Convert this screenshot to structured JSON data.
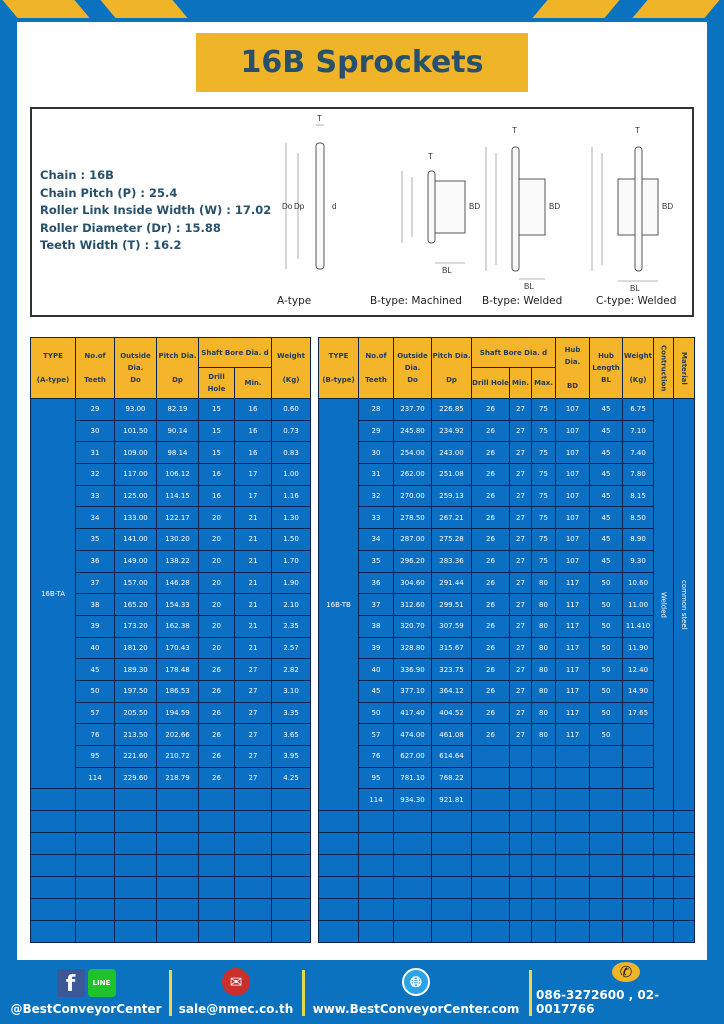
{
  "title": "16B Sprockets",
  "colors": {
    "brand_blue": "#0b72bf",
    "accent_yellow": "#f0b429",
    "title_text": "#27506b",
    "table_cell": "#0b6fc4"
  },
  "specs": [
    {
      "label": "Chain",
      "value": "16B"
    },
    {
      "label": "Chain Pitch (P)",
      "value": "25.4"
    },
    {
      "label": "Roller Link Inside Width (W)",
      "value": "17.02"
    },
    {
      "label": "Roller Diameter (Dr)",
      "value": "15.88"
    },
    {
      "label": "Teeth Width (T)",
      "value": "16.2"
    }
  ],
  "diagrams": {
    "labels": {
      "t": "T",
      "do": "Do",
      "dp": "Dp",
      "d": "d",
      "bd": "BD",
      "bl": "BL"
    },
    "captions": [
      "A-type",
      "B-type: Machined",
      "B-type: Welded",
      "C-type: Welded"
    ]
  },
  "table_a": {
    "headers": {
      "type": "TYPE",
      "type_sub": "(A-type)",
      "teeth": "No.of",
      "teeth_sub": "Teeth",
      "do": "Outside",
      "do_sub": "Dia.",
      "do_sub2": "Do",
      "dp": "Pitch Dia.",
      "dp_sub": "Dp",
      "bore": "Shaft Bore Dia. d",
      "drill": "Drill Hole",
      "min": "Min.",
      "weight": "Weight",
      "weight_sub": "(Kg)"
    },
    "type_value": "16B-TA",
    "rows": [
      [
        "29",
        "93.00",
        "82.19",
        "15",
        "16",
        "0.60"
      ],
      [
        "30",
        "101.50",
        "90.14",
        "15",
        "16",
        "0.73"
      ],
      [
        "31",
        "109.00",
        "98.14",
        "15",
        "16",
        "0.83"
      ],
      [
        "32",
        "117.00",
        "106.12",
        "16",
        "17",
        "1.00"
      ],
      [
        "33",
        "125.00",
        "114.15",
        "16",
        "17",
        "1.16"
      ],
      [
        "34",
        "133.00",
        "122.17",
        "20",
        "21",
        "1.30"
      ],
      [
        "35",
        "141.00",
        "130.20",
        "20",
        "21",
        "1.50"
      ],
      [
        "36",
        "149.00",
        "138.22",
        "20",
        "21",
        "1.70"
      ],
      [
        "37",
        "157.00",
        "146.28",
        "20",
        "21",
        "1.90"
      ],
      [
        "38",
        "165.20",
        "154.33",
        "20",
        "21",
        "2.10"
      ],
      [
        "39",
        "173.20",
        "162.38",
        "20",
        "21",
        "2.35"
      ],
      [
        "40",
        "181.20",
        "170.43",
        "20",
        "21",
        "2.57"
      ],
      [
        "45",
        "189.30",
        "178.48",
        "26",
        "27",
        "2.82"
      ],
      [
        "50",
        "197.50",
        "186.53",
        "26",
        "27",
        "3.10"
      ],
      [
        "57",
        "205.50",
        "194.59",
        "26",
        "27",
        "3.35"
      ],
      [
        "76",
        "213.50",
        "202.66",
        "26",
        "27",
        "3.65"
      ],
      [
        "95",
        "221.60",
        "210.72",
        "26",
        "27",
        "3.95"
      ],
      [
        "114",
        "229.60",
        "218.79",
        "26",
        "27",
        "4.25"
      ]
    ]
  },
  "table_b": {
    "headers": {
      "type": "TYPE",
      "type_sub": "(B-type)",
      "teeth": "No.of",
      "teeth_sub": "Teeth",
      "do": "Outside",
      "do_sub": "Dia.",
      "do_sub2": "Do",
      "dp": "Pitch Dia.",
      "dp_sub": "Dp",
      "bore": "Shaft Bore Dia. d",
      "drill": "Drill Hole",
      "min": "Min.",
      "max": "Max.",
      "bd": "Hub Dia.",
      "bd_sub": "BD",
      "bl": "Hub",
      "bl_sub": "Length",
      "bl_sub2": "BL",
      "weight": "Weight",
      "weight_sub": "(Kg)",
      "construction": "Contruction",
      "material": "Material"
    },
    "type_value": "16B-TB",
    "construction_value": "Welded",
    "material_value": "common steel",
    "rows": [
      [
        "28",
        "237.70",
        "226.85",
        "26",
        "27",
        "75",
        "107",
        "45",
        "6.75"
      ],
      [
        "29",
        "245.80",
        "234.92",
        "26",
        "27",
        "75",
        "107",
        "45",
        "7.10"
      ],
      [
        "30",
        "254.00",
        "243.00",
        "26",
        "27",
        "75",
        "107",
        "45",
        "7.40"
      ],
      [
        "31",
        "262.00",
        "251.08",
        "26",
        "27",
        "75",
        "107",
        "45",
        "7.80"
      ],
      [
        "32",
        "270.00",
        "259.13",
        "26",
        "27",
        "75",
        "107",
        "45",
        "8.15"
      ],
      [
        "33",
        "278.50",
        "267.21",
        "26",
        "27",
        "75",
        "107",
        "45",
        "8.50"
      ],
      [
        "34",
        "287.00",
        "275.28",
        "26",
        "27",
        "75",
        "107",
        "45",
        "8.90"
      ],
      [
        "35",
        "296.20",
        "283.36",
        "26",
        "27",
        "75",
        "107",
        "45",
        "9.30"
      ],
      [
        "36",
        "304.60",
        "291.44",
        "26",
        "27",
        "80",
        "117",
        "50",
        "10.60"
      ],
      [
        "37",
        "312.60",
        "299.51",
        "26",
        "27",
        "80",
        "117",
        "50",
        "11.00"
      ],
      [
        "38",
        "320.70",
        "307.59",
        "26",
        "27",
        "80",
        "117",
        "50",
        "11.410"
      ],
      [
        "39",
        "328.80",
        "315.67",
        "26",
        "27",
        "80",
        "117",
        "50",
        "11.90"
      ],
      [
        "40",
        "336.90",
        "323.75",
        "26",
        "27",
        "80",
        "117",
        "50",
        "12.40"
      ],
      [
        "45",
        "377.10",
        "364.12",
        "26",
        "27",
        "80",
        "117",
        "50",
        "14.90"
      ],
      [
        "50",
        "417.40",
        "404.52",
        "26",
        "27",
        "80",
        "117",
        "50",
        "17.65"
      ],
      [
        "57",
        "474.00",
        "461.08",
        "26",
        "27",
        "80",
        "117",
        "50",
        ""
      ],
      [
        "76",
        "627.00",
        "614.64",
        "",
        "",
        "",
        "",
        "",
        ""
      ],
      [
        "95",
        "781.10",
        "768.22",
        "",
        "",
        "",
        "",
        "",
        ""
      ],
      [
        "114",
        "934.30",
        "921.81",
        "",
        "",
        "",
        "",
        "",
        ""
      ]
    ]
  },
  "footer": {
    "social": "@BestConveyorCenter",
    "social_line": "LINE",
    "email": "sale@nmec.co.th",
    "website": "www.BestConveyorCenter.com",
    "phone": "086-3272600 , 02-0017766"
  },
  "watermark": "BEST CONVEYOR CENTER"
}
